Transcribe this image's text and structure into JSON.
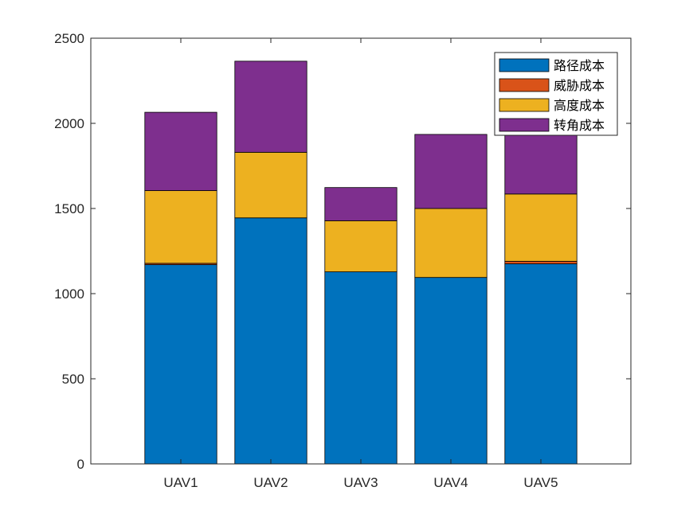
{
  "chart_data": {
    "type": "bar",
    "stacked": true,
    "categories": [
      "UAV1",
      "UAV2",
      "UAV3",
      "UAV4",
      "UAV5"
    ],
    "series": [
      {
        "name": "路径成本",
        "color": "#0072BD",
        "values": [
          1170,
          1445,
          1128,
          1095,
          1175
        ]
      },
      {
        "name": "威胁成本",
        "color": "#D95319",
        "values": [
          8,
          0,
          0,
          0,
          15
        ]
      },
      {
        "name": "高度成本",
        "color": "#EDB120",
        "values": [
          427,
          385,
          300,
          405,
          395
        ]
      },
      {
        "name": "转角成本",
        "color": "#7E2F8E",
        "values": [
          460,
          535,
          195,
          435,
          420
        ]
      }
    ],
    "ylim": [
      0,
      2500
    ],
    "yticks": [
      0,
      500,
      1000,
      1500,
      2000,
      2500
    ],
    "xlabel": "",
    "ylabel": "",
    "title": "",
    "grid": false,
    "legend_position": "top-right"
  }
}
